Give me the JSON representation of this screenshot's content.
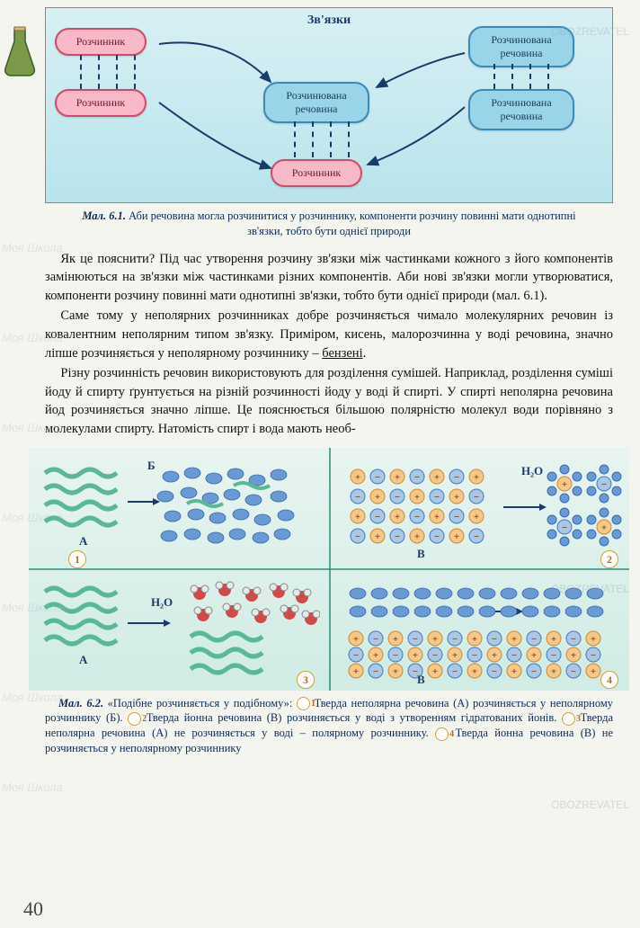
{
  "watermark_text": "Моя Школа",
  "obozrevatel": "OBOZREVATEL",
  "diagram1": {
    "title": "Зв'язки",
    "nodes": {
      "solvent": "Розчинник",
      "solute_2line": "Розчинювана\nречовина"
    },
    "pink_color": "#f7b8c8",
    "pink_border": "#d14a6a",
    "blue_color": "#9ad4e8",
    "blue_border": "#3a8ab8",
    "bg_top": "#d8f0f4",
    "bg_bot": "#b8e4ec"
  },
  "caption1_label": "Мал. 6.1.",
  "caption1_text": " Аби речовина могла розчинитися у розчиннику, компоненти розчину повинні мати однотипні зв'язки, тобто бути однієї природи",
  "para1": "Як це пояснити? Під час утворення розчину зв'язки між частинками кожного з його компонентів замінюються на зв'язки між частинками різних компонентів. Аби нові зв'язки могли утворюватися, компоненти розчину повинні мати однотипні зв'язки, тобто бути однієї природи (мал. 6.1).",
  "para2": "Саме тому у неполярних розчинниках добре розчиняється чимало молекулярних речовин із ковалентним неполярним типом зв'язку. Приміром, кисень, малорозчинна у воді речовина, значно ліпше розчиняється у неполярному розчиннику – бензені.",
  "para3": "Різну розчинність речовин використовують для розділення сумішей. Наприклад, розділення суміші йоду й спирту ґрунтується на різній розчинності йоду у воді й спирті. У спирті неполярна речовина йод розчиняється значно ліпше. Це пояснюється більшою полярністю молекул води порівняно з молекулами спирту. Натомість спирт і вода мають необ-",
  "benzene_underline": "бензені",
  "diagram2": {
    "labels": {
      "A": "А",
      "B": "Б",
      "V": "В",
      "h2o": "H₂O"
    },
    "panel_numbers": [
      "1",
      "2",
      "3",
      "4"
    ],
    "colors": {
      "wave": "#5ab896",
      "oval_blue": "#6a9ad4",
      "ion_plus_fill": "#f4c888",
      "ion_plus_border": "#d48830",
      "ion_minus_fill": "#a8c8e8",
      "ion_minus_border": "#4878b8",
      "grid_border": "#2a8a7a"
    }
  },
  "caption2_label": "Мал. 6.2.",
  "caption2_text_a": " «Подібне розчиняється у подібному»: ",
  "caption2_seg1": " Тверда неполярна речовина (А) розчиняється у неполярному розчиннику (Б). ",
  "caption2_seg2": " Тверда йонна речовина (В) розчиняється у воді з утворенням гідратованих йонів. ",
  "caption2_seg3": " Тверда неполярна речовина (А) не розчиняється у воді – полярному розчиннику. ",
  "caption2_seg4": " Тверда йонна речовина (В) не розчиняється у неполярному розчиннику",
  "page_number": "40"
}
